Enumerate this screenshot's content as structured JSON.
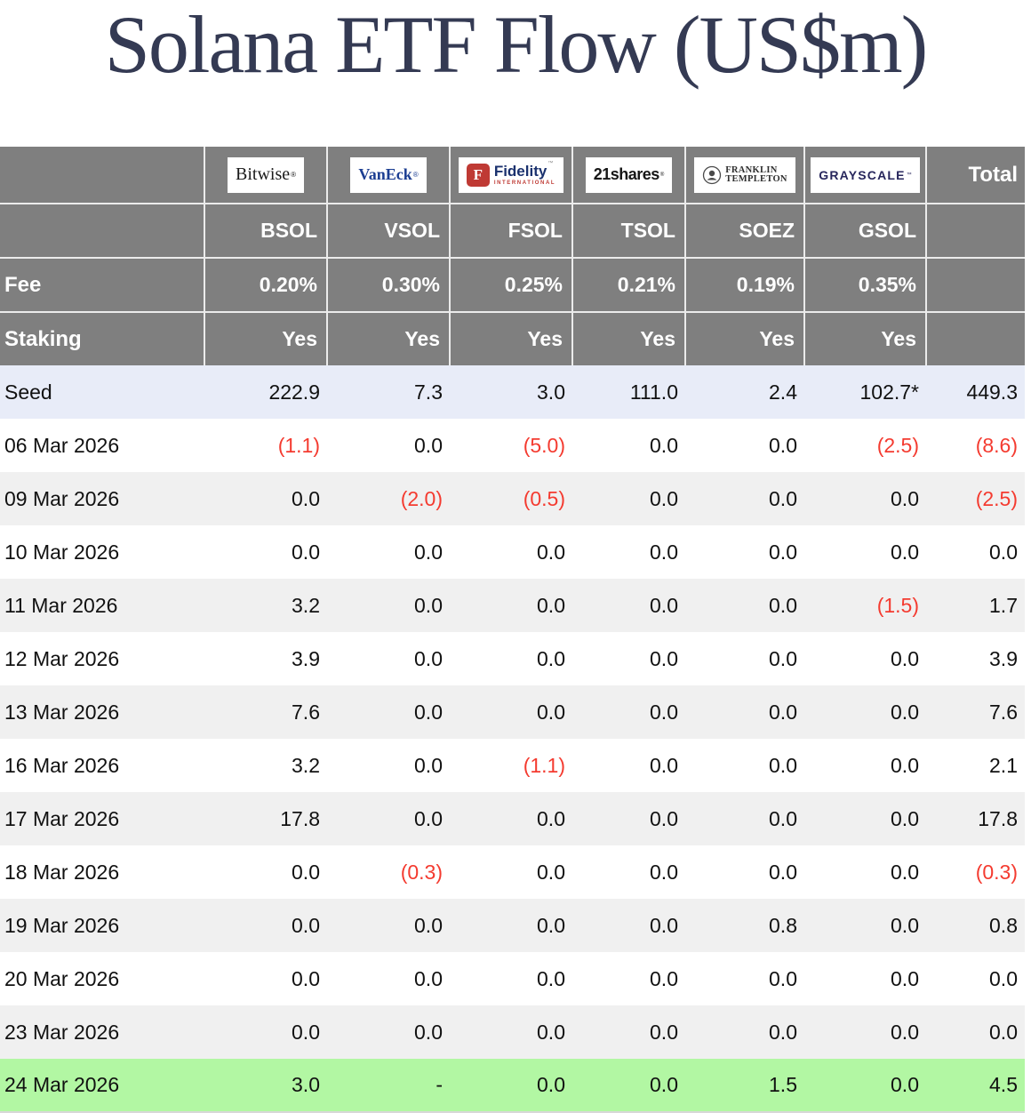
{
  "title": "Solana ETF Flow (US$m)",
  "chart_data": {
    "type": "table",
    "title": "Solana ETF Flow (US$m)",
    "total_label": "Total",
    "row_header_labels": {
      "fee": "Fee",
      "staking": "Staking"
    },
    "issuers": [
      {
        "id": "bitwise",
        "name": "Bitwise",
        "logo_text": "Bitwise",
        "logo_mark": "®",
        "ticker": "BSOL",
        "fee": "0.20%",
        "staking": "Yes"
      },
      {
        "id": "vaneck",
        "name": "VanEck",
        "logo_text": "VanEck",
        "logo_mark": "®",
        "ticker": "VSOL",
        "fee": "0.30%",
        "staking": "Yes"
      },
      {
        "id": "fidelity",
        "name": "Fidelity International",
        "logo_text": "Fidelity",
        "logo_mark": "™",
        "logo_sub": "INTERNATIONAL",
        "f_letter": "F",
        "ticker": "FSOL",
        "fee": "0.25%",
        "staking": "Yes"
      },
      {
        "id": "twentyone",
        "name": "21shares",
        "logo_text": "21shares",
        "logo_mark": "®",
        "ticker": "TSOL",
        "fee": "0.21%",
        "staking": "Yes"
      },
      {
        "id": "franklin",
        "name": "Franklin Templeton",
        "logo_line1": "FRANKLIN",
        "logo_line2": "TEMPLETON",
        "ticker": "SOEZ",
        "fee": "0.19%",
        "staking": "Yes"
      },
      {
        "id": "grayscale",
        "name": "Grayscale",
        "logo_text": "GRAYSCALE",
        "logo_mark": "™",
        "ticker": "GSOL",
        "fee": "0.35%",
        "staking": "Yes"
      }
    ],
    "columns": [
      "",
      "BSOL",
      "VSOL",
      "FSOL",
      "TSOL",
      "SOEZ",
      "GSOL",
      "Total"
    ],
    "rows": [
      {
        "label": "Seed",
        "highlight": "seed",
        "values": [
          "222.9",
          "7.3",
          "3.0",
          "111.0",
          "2.4",
          "102.7*",
          "449.3"
        ]
      },
      {
        "label": "06 Mar 2026",
        "values": [
          "(1.1)",
          "0.0",
          "(5.0)",
          "0.0",
          "0.0",
          "(2.5)",
          "(8.6)"
        ]
      },
      {
        "label": "09 Mar 2026",
        "values": [
          "0.0",
          "(2.0)",
          "(0.5)",
          "0.0",
          "0.0",
          "0.0",
          "(2.5)"
        ]
      },
      {
        "label": "10 Mar 2026",
        "values": [
          "0.0",
          "0.0",
          "0.0",
          "0.0",
          "0.0",
          "0.0",
          "0.0"
        ]
      },
      {
        "label": "11 Mar 2026",
        "values": [
          "3.2",
          "0.0",
          "0.0",
          "0.0",
          "0.0",
          "(1.5)",
          "1.7"
        ]
      },
      {
        "label": "12 Mar 2026",
        "values": [
          "3.9",
          "0.0",
          "0.0",
          "0.0",
          "0.0",
          "0.0",
          "3.9"
        ]
      },
      {
        "label": "13 Mar 2026",
        "values": [
          "7.6",
          "0.0",
          "0.0",
          "0.0",
          "0.0",
          "0.0",
          "7.6"
        ]
      },
      {
        "label": "16 Mar 2026",
        "values": [
          "3.2",
          "0.0",
          "(1.1)",
          "0.0",
          "0.0",
          "0.0",
          "2.1"
        ]
      },
      {
        "label": "17 Mar 2026",
        "values": [
          "17.8",
          "0.0",
          "0.0",
          "0.0",
          "0.0",
          "0.0",
          "17.8"
        ]
      },
      {
        "label": "18 Mar 2026",
        "values": [
          "0.0",
          "(0.3)",
          "0.0",
          "0.0",
          "0.0",
          "0.0",
          "(0.3)"
        ]
      },
      {
        "label": "19 Mar 2026",
        "values": [
          "0.0",
          "0.0",
          "0.0",
          "0.0",
          "0.8",
          "0.0",
          "0.8"
        ]
      },
      {
        "label": "20 Mar 2026",
        "values": [
          "0.0",
          "0.0",
          "0.0",
          "0.0",
          "0.0",
          "0.0",
          "0.0"
        ]
      },
      {
        "label": "23 Mar 2026",
        "values": [
          "0.0",
          "0.0",
          "0.0",
          "0.0",
          "0.0",
          "0.0",
          "0.0"
        ]
      },
      {
        "label": "24 Mar 2026",
        "highlight": "latest",
        "values": [
          "3.0",
          "-",
          "0.0",
          "0.0",
          "1.5",
          "0.0",
          "4.5"
        ]
      }
    ]
  },
  "colors": {
    "title_color": "#343a53",
    "header_bg": "#7f7f7f",
    "header_divider": "#ebebeb",
    "seed_row_bg": "#e8ecf8",
    "alt_row_bg": "#f0f0f0",
    "latest_row_bg": "#b2f7a3",
    "negative_text": "#f43b30",
    "text_color": "#111111",
    "logo_vaneck_blue": "#1c3e92",
    "logo_fidelity_blue": "#1a316e",
    "logo_fidelity_red": "#bf3a34",
    "logo_grayscale_navy": "#27265c"
  }
}
